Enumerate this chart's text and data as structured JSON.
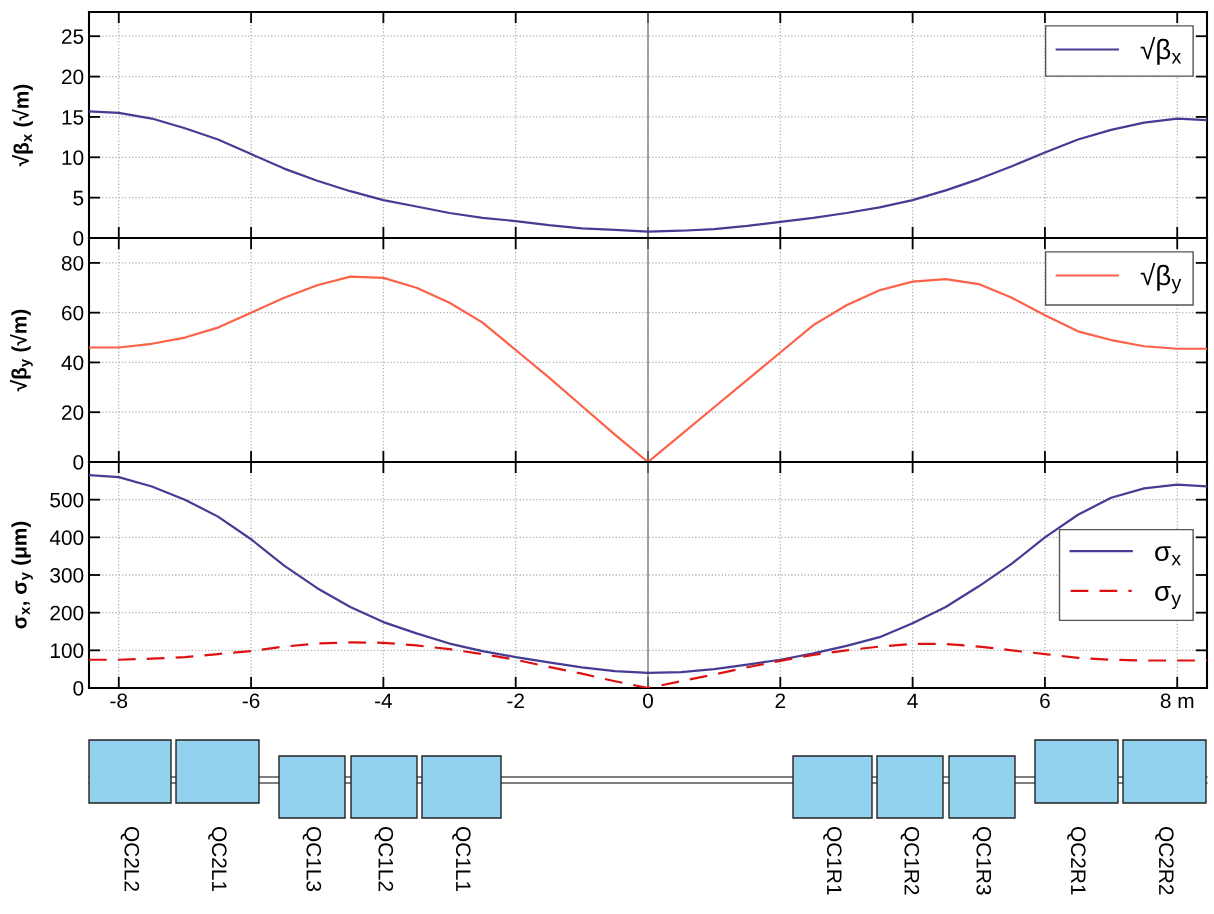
{
  "chart_data": [
    {
      "type": "line",
      "ylabel": "√β$_{x}$ (√m)",
      "xlim": [
        -8.45,
        8.45
      ],
      "xticks": [
        -8,
        -6,
        -4,
        -2,
        0,
        2,
        4,
        6,
        8
      ],
      "ylim": [
        0,
        28
      ],
      "yticks": [
        0,
        5,
        10,
        15,
        20,
        25
      ],
      "tick_labels": "y",
      "grid": true,
      "legend": "top right",
      "line_style": "solid",
      "x": [
        -8.45,
        -8,
        -7.5,
        -7,
        -6.5,
        -6,
        -5.5,
        -5,
        -4.5,
        -4,
        -3.5,
        -3,
        -2.5,
        -2,
        -1.5,
        -1,
        -0.5,
        0,
        0.5,
        1,
        1.5,
        2,
        2.5,
        3,
        3.5,
        4,
        4.5,
        5,
        5.5,
        6,
        6.5,
        7,
        7.5,
        8,
        8.45
      ],
      "series": [
        {
          "name": "√β$_{x}$",
          "color": "#453c94",
          "values": [
            15.7,
            15.5,
            14.8,
            13.6,
            12.2,
            10.4,
            8.6,
            7.1,
            5.8,
            4.7,
            3.9,
            3.1,
            2.5,
            2.1,
            1.6,
            1.2,
            1.0,
            0.8,
            0.9,
            1.1,
            1.5,
            2.0,
            2.5,
            3.1,
            3.8,
            4.7,
            5.9,
            7.3,
            8.9,
            10.6,
            12.2,
            13.4,
            14.3,
            14.8,
            14.6
          ]
        }
      ],
      "ref_lines": [
        {
          "axis": "x",
          "value": 0,
          "color": "#808080"
        }
      ]
    },
    {
      "type": "line",
      "ylabel": "√β$_{y}$ (√m)",
      "xlim": [
        -8.45,
        8.45
      ],
      "xticks": [
        -8,
        -6,
        -4,
        -2,
        0,
        2,
        4,
        6,
        8
      ],
      "ylim": [
        0,
        90
      ],
      "yticks": [
        0,
        20,
        40,
        60,
        80
      ],
      "tick_labels": "y",
      "grid": true,
      "legend": "top right",
      "line_style": "solid",
      "x": [
        -8.45,
        -8,
        -7.5,
        -7,
        -6.5,
        -6,
        -5.5,
        -5,
        -4.5,
        -4,
        -3.5,
        -3,
        -2.5,
        -2,
        -1.5,
        -1,
        -0.5,
        0,
        0.5,
        1,
        1.5,
        2,
        2.5,
        3,
        3.5,
        4,
        4.5,
        5,
        5.5,
        6,
        6.5,
        7,
        7.5,
        8,
        8.45
      ],
      "series": [
        {
          "name": "√β$_{y}$",
          "color": "#fb6248",
          "values": [
            46,
            46,
            47.5,
            50,
            54,
            60,
            66,
            71,
            74.5,
            74,
            70,
            64,
            56,
            45,
            34,
            22.5,
            11,
            0,
            11,
            22,
            33,
            44,
            55,
            63,
            69,
            72.5,
            73.5,
            71.5,
            66,
            59,
            52.5,
            49,
            46.5,
            45.5,
            45.5
          ]
        }
      ],
      "ref_lines": [
        {
          "axis": "x",
          "value": 0,
          "color": "#808080"
        }
      ]
    },
    {
      "type": "line",
      "ylabel": "σ$_{x}$, σ$_{y}$ (μm)",
      "xlim": [
        -8.45,
        8.45
      ],
      "xticks": [
        -8,
        -6,
        -4,
        -2,
        0,
        2,
        4,
        6,
        {
          "value": 8,
          "label": "8 m"
        }
      ],
      "ylim": [
        0,
        600
      ],
      "yticks": [
        0,
        100,
        200,
        300,
        400,
        500
      ],
      "grid": true,
      "legend": "right",
      "x": [
        -8.45,
        -8,
        -7.5,
        -7,
        -6.5,
        -6,
        -5.5,
        -5,
        -4.5,
        -4,
        -3.5,
        -3,
        -2.5,
        -2,
        -1.5,
        -1,
        -0.5,
        0,
        0.5,
        1,
        1.5,
        2,
        2.5,
        3,
        3.5,
        4,
        4.5,
        5,
        5.5,
        6,
        6.5,
        7,
        7.5,
        8,
        8.45
      ],
      "series": [
        {
          "name": "σ$_{x}$",
          "color": "#453c94",
          "line_style": "solid",
          "values": [
            565,
            560,
            535,
            500,
            455,
            395,
            325,
            265,
            215,
            175,
            145,
            118,
            98,
            82,
            68,
            55,
            45,
            40,
            42,
            50,
            62,
            75,
            92,
            112,
            135,
            172,
            215,
            270,
            330,
            400,
            460,
            505,
            530,
            540,
            535
          ]
        },
        {
          "name": "σ$_{y}$",
          "color": "#dd1111",
          "line_style": "dashed",
          "values": [
            75,
            75,
            78,
            82,
            90,
            98,
            110,
            118,
            121,
            120,
            113,
            103,
            90,
            75,
            56,
            38,
            18,
            0,
            18,
            36,
            55,
            72,
            88,
            100,
            110,
            117,
            117,
            110,
            100,
            90,
            80,
            75,
            73,
            73,
            73
          ]
        }
      ],
      "ref_lines": [
        {
          "axis": "x",
          "value": 0,
          "color": "#808080"
        }
      ]
    },
    {
      "type": "other",
      "categories": [
        "QC2L2",
        "QC2L1",
        "QC1L3",
        "QC1L2",
        "QC1L1",
        "QC1R1",
        "QC1R2",
        "QC1R3",
        "QC2R1",
        "QC2R2"
      ]
    }
  ]
}
